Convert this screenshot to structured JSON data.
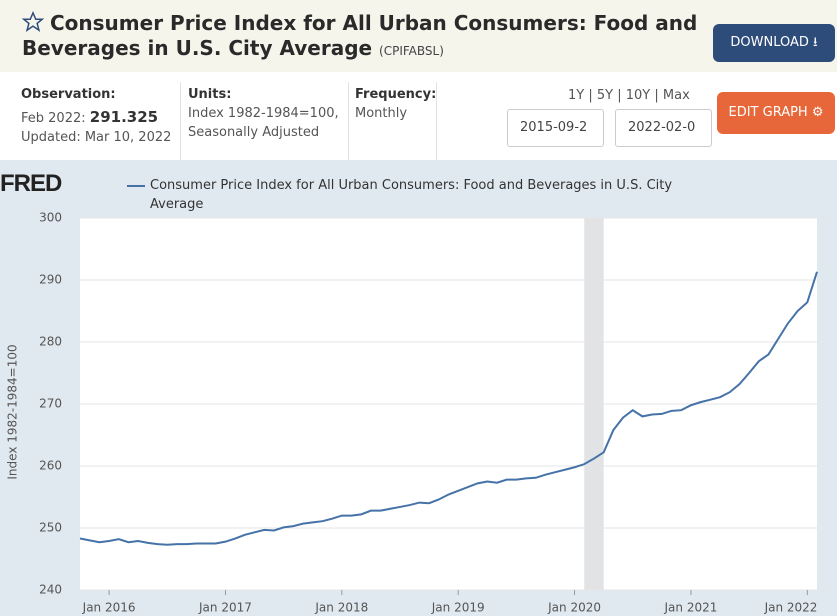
{
  "header": {
    "title": "Consumer Price Index for All Urban Consumers: Food and Beverages in U.S. City Average",
    "series_id": "(CPIFABSL)",
    "download": "DOWNLOAD"
  },
  "info": {
    "observation_label": "Observation:",
    "observation_date": "Feb 2022:",
    "observation_value": "291.325",
    "updated": "Updated: Mar 10, 2022",
    "units_label": "Units:",
    "units": "Index 1982-1984=100, Seasonally Adjusted",
    "frequency_label": "Frequency:",
    "frequency": "Monthly"
  },
  "controls": {
    "ranges": [
      "1Y",
      "5Y",
      "10Y",
      "Max"
    ],
    "start": "2015-09-2",
    "end": "2022-02-0",
    "edit": "EDIT GRAPH"
  },
  "chart_data": {
    "type": "line",
    "logo": "FRED",
    "ylabel": "Index 1982-1984=100",
    "x": [
      "2015-10",
      "2015-11",
      "2015-12",
      "2016-01",
      "2016-02",
      "2016-03",
      "2016-04",
      "2016-05",
      "2016-06",
      "2016-07",
      "2016-08",
      "2016-09",
      "2016-10",
      "2016-11",
      "2016-12",
      "2017-01",
      "2017-02",
      "2017-03",
      "2017-04",
      "2017-05",
      "2017-06",
      "2017-07",
      "2017-08",
      "2017-09",
      "2017-10",
      "2017-11",
      "2017-12",
      "2018-01",
      "2018-02",
      "2018-03",
      "2018-04",
      "2018-05",
      "2018-06",
      "2018-07",
      "2018-08",
      "2018-09",
      "2018-10",
      "2018-11",
      "2018-12",
      "2019-01",
      "2019-02",
      "2019-03",
      "2019-04",
      "2019-05",
      "2019-06",
      "2019-07",
      "2019-08",
      "2019-09",
      "2019-10",
      "2019-11",
      "2019-12",
      "2020-01",
      "2020-02",
      "2020-03",
      "2020-04",
      "2020-05",
      "2020-06",
      "2020-07",
      "2020-08",
      "2020-09",
      "2020-10",
      "2020-11",
      "2020-12",
      "2021-01",
      "2021-02",
      "2021-03",
      "2021-04",
      "2021-05",
      "2021-06",
      "2021-07",
      "2021-08",
      "2021-09",
      "2021-10",
      "2021-11",
      "2021-12",
      "2022-01",
      "2022-02"
    ],
    "series": [
      {
        "name": "Consumer Price Index for All Urban Consumers: Food and Beverages in U.S. City Average",
        "color": "#4572a7",
        "values": [
          248.3,
          248.0,
          247.7,
          247.9,
          248.2,
          247.7,
          247.9,
          247.6,
          247.4,
          247.3,
          247.4,
          247.4,
          247.5,
          247.5,
          247.5,
          247.8,
          248.3,
          248.9,
          249.3,
          249.7,
          249.6,
          250.1,
          250.3,
          250.7,
          250.9,
          251.1,
          251.5,
          252.0,
          252.0,
          252.2,
          252.8,
          252.8,
          253.1,
          253.4,
          253.7,
          254.1,
          254.0,
          254.6,
          255.4,
          256.0,
          256.6,
          257.2,
          257.5,
          257.3,
          257.8,
          257.8,
          258.0,
          258.1,
          258.6,
          259.0,
          259.4,
          259.8,
          260.3,
          261.2,
          262.2,
          265.8,
          267.8,
          269.0,
          268.0,
          268.3,
          268.4,
          268.9,
          269.0,
          269.8,
          270.3,
          270.7,
          271.1,
          271.9,
          273.2,
          275.0,
          276.9,
          278.0,
          280.5,
          283.0,
          285.0,
          286.4,
          291.325
        ]
      }
    ],
    "recessions": [
      {
        "start": "2020-02",
        "end": "2020-04"
      }
    ],
    "xlim": [
      "2015-10",
      "2022-02"
    ],
    "xticks": [
      {
        "value": "2016-01",
        "label": "Jan 2016"
      },
      {
        "value": "2017-01",
        "label": "Jan 2017"
      },
      {
        "value": "2018-01",
        "label": "Jan 2018"
      },
      {
        "value": "2019-01",
        "label": "Jan 2019"
      },
      {
        "value": "2020-01",
        "label": "Jan 2020"
      },
      {
        "value": "2021-01",
        "label": "Jan 2021"
      },
      {
        "value": "2022-01",
        "label": "Jan 2022"
      }
    ],
    "ylim": [
      240,
      300
    ],
    "yticks": [
      240,
      250,
      260,
      270,
      280,
      290,
      300
    ],
    "grid": true
  }
}
